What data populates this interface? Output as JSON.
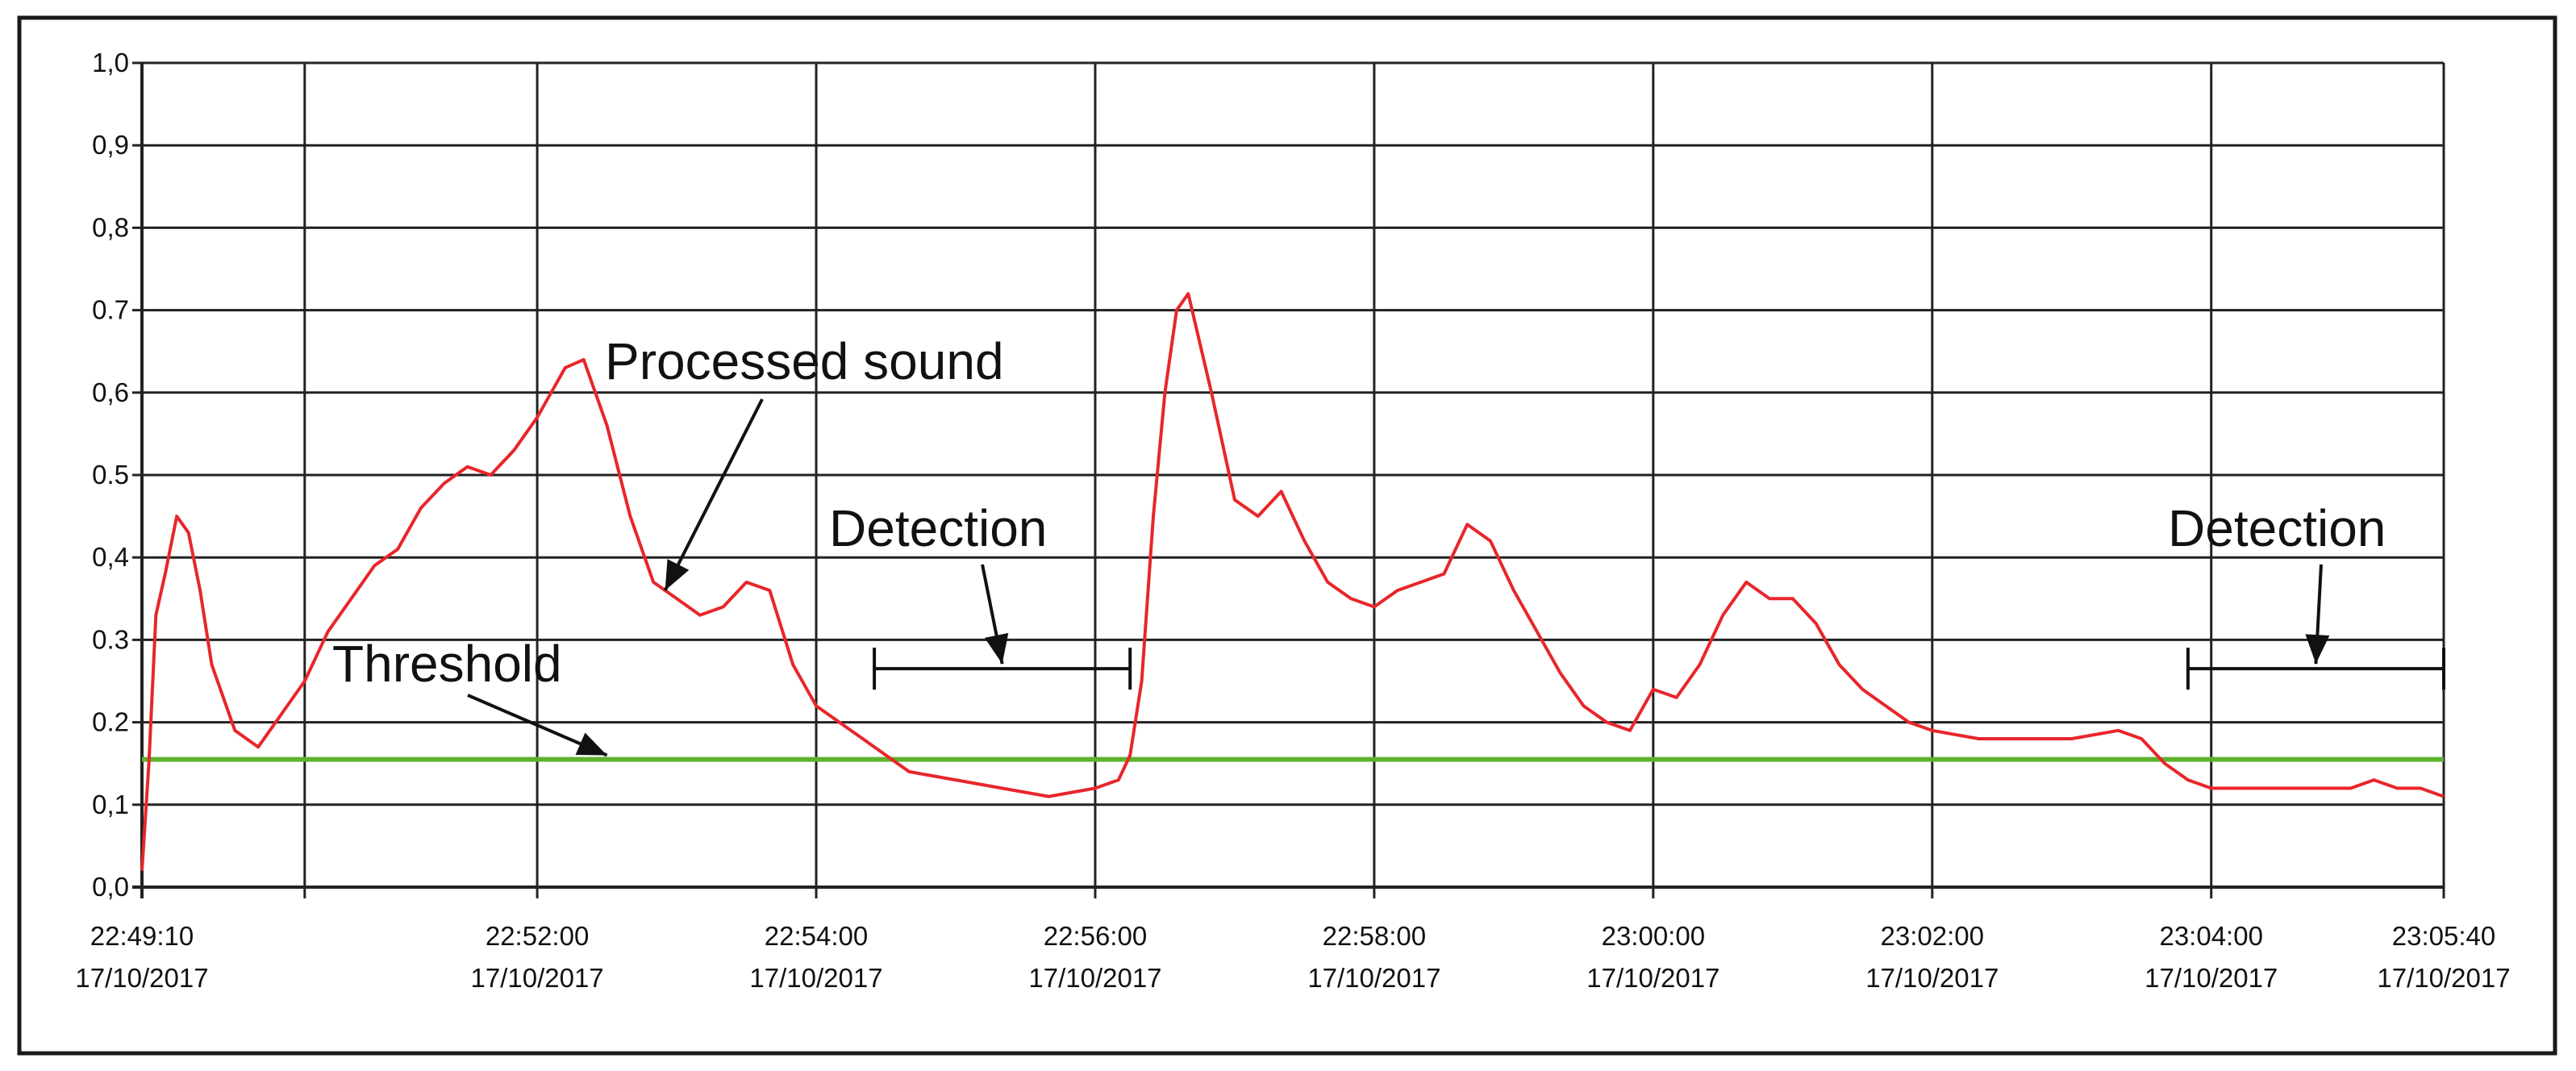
{
  "chart_data": {
    "type": "line",
    "title": "",
    "xlabel": "",
    "ylabel": "",
    "x_axis_type": "time",
    "date": "17/10/2017",
    "x_start": "22:49:10",
    "x_end": "23:05:40",
    "ylim": [
      0.0,
      1.0
    ],
    "grid": true,
    "y_ticks": [
      {
        "value": 0.0,
        "label": "0,0"
      },
      {
        "value": 0.1,
        "label": "0,1"
      },
      {
        "value": 0.2,
        "label": "0.2"
      },
      {
        "value": 0.3,
        "label": "0.3"
      },
      {
        "value": 0.4,
        "label": "0,4"
      },
      {
        "value": 0.5,
        "label": "0.5"
      },
      {
        "value": 0.6,
        "label": "0,6"
      },
      {
        "value": 0.7,
        "label": "0.7"
      },
      {
        "value": 0.8,
        "label": "0,8"
      },
      {
        "value": 0.9,
        "label": "0,9"
      },
      {
        "value": 1.0,
        "label": "1,0"
      }
    ],
    "x_gridlines": [
      "22:49:10",
      "22:50:20",
      "22:52:00",
      "22:54:00",
      "22:56:00",
      "22:58:00",
      "23:00:00",
      "23:02:00",
      "23:04:00",
      "23:05:40"
    ],
    "x_ticks": [
      {
        "time": "22:49:10",
        "label": "22:49:10",
        "date": "17/10/2017"
      },
      {
        "time": "22:52:00",
        "label": "22:52:00",
        "date": "17/10/2017"
      },
      {
        "time": "22:54:00",
        "label": "22:54:00",
        "date": "17/10/2017"
      },
      {
        "time": "22:56:00",
        "label": "22:56:00",
        "date": "17/10/2017"
      },
      {
        "time": "22:58:00",
        "label": "22:58:00",
        "date": "17/10/2017"
      },
      {
        "time": "23:00:00",
        "label": "23:00:00",
        "date": "17/10/2017"
      },
      {
        "time": "23:02:00",
        "label": "23:02:00",
        "date": "17/10/2017"
      },
      {
        "time": "23:04:00",
        "label": "23:04:00",
        "date": "17/10/2017"
      },
      {
        "time": "23:05:40",
        "label": "23:05:40",
        "date": "17/10/2017"
      }
    ],
    "series": [
      {
        "color": "#e8262b",
        "x": [
          "22:49:10",
          "22:49:13",
          "22:49:16",
          "22:49:20",
          "22:49:25",
          "22:49:30",
          "22:49:35",
          "22:49:40",
          "22:49:50",
          "22:50:00",
          "22:50:10",
          "22:50:20",
          "22:50:30",
          "22:50:40",
          "22:50:50",
          "22:51:00",
          "22:51:10",
          "22:51:20",
          "22:51:30",
          "22:51:40",
          "22:51:50",
          "22:52:00",
          "22:52:06",
          "22:52:12",
          "22:52:20",
          "22:52:30",
          "22:52:40",
          "22:52:50",
          "22:53:00",
          "22:53:10",
          "22:53:20",
          "22:53:30",
          "22:53:40",
          "22:53:50",
          "22:54:00",
          "22:54:10",
          "22:54:20",
          "22:54:30",
          "22:54:40",
          "22:55:00",
          "22:55:20",
          "22:55:40",
          "22:56:00",
          "22:56:10",
          "22:56:15",
          "22:56:20",
          "22:56:25",
          "22:56:30",
          "22:56:35",
          "22:56:40",
          "22:56:50",
          "22:57:00",
          "22:57:10",
          "22:57:20",
          "22:57:30",
          "22:57:40",
          "22:57:50",
          "22:58:00",
          "22:58:10",
          "22:58:20",
          "22:58:30",
          "22:58:40",
          "22:58:50",
          "22:59:00",
          "22:59:10",
          "22:59:20",
          "22:59:30",
          "22:59:40",
          "22:59:50",
          "23:00:00",
          "23:00:10",
          "23:00:20",
          "23:00:30",
          "23:00:40",
          "23:00:50",
          "23:01:00",
          "23:01:10",
          "23:01:20",
          "23:01:30",
          "23:01:40",
          "23:01:50",
          "23:02:00",
          "23:02:20",
          "23:02:40",
          "23:03:00",
          "23:03:20",
          "23:03:30",
          "23:03:40",
          "23:03:50",
          "23:04:00",
          "23:04:20",
          "23:04:40",
          "23:05:00",
          "23:05:10",
          "23:05:20",
          "23:05:30",
          "23:05:40"
        ],
        "values": [
          0.02,
          0.15,
          0.33,
          0.38,
          0.45,
          0.43,
          0.36,
          0.27,
          0.19,
          0.17,
          0.21,
          0.25,
          0.31,
          0.35,
          0.39,
          0.41,
          0.46,
          0.49,
          0.51,
          0.5,
          0.53,
          0.57,
          0.6,
          0.63,
          0.64,
          0.56,
          0.45,
          0.37,
          0.35,
          0.33,
          0.34,
          0.37,
          0.36,
          0.27,
          0.22,
          0.2,
          0.18,
          0.16,
          0.14,
          0.13,
          0.12,
          0.11,
          0.12,
          0.13,
          0.16,
          0.25,
          0.45,
          0.6,
          0.7,
          0.72,
          0.6,
          0.47,
          0.45,
          0.48,
          0.42,
          0.37,
          0.35,
          0.34,
          0.36,
          0.37,
          0.38,
          0.44,
          0.42,
          0.36,
          0.31,
          0.26,
          0.22,
          0.2,
          0.19,
          0.24,
          0.23,
          0.27,
          0.33,
          0.37,
          0.35,
          0.35,
          0.32,
          0.27,
          0.24,
          0.22,
          0.2,
          0.19,
          0.18,
          0.18,
          0.18,
          0.19,
          0.18,
          0.15,
          0.13,
          0.12,
          0.12,
          0.12,
          0.12,
          0.13,
          0.12,
          0.12,
          0.11
        ]
      },
      {
        "color": "#5db32e",
        "x": [
          "22:49:10",
          "23:05:40"
        ],
        "values": [
          0.155,
          0.155
        ]
      }
    ],
    "annotations": [
      {
        "text": "Processed sound",
        "arrow_to": {
          "x": "22:52:55",
          "y": 0.36
        }
      },
      {
        "text": "Threshold",
        "arrow_to": {
          "x": "22:52:30",
          "y": 0.16
        }
      },
      {
        "text": "Detection",
        "interval": [
          "22:54:25",
          "22:56:15"
        ],
        "y": 0.265
      },
      {
        "text": "Detection",
        "interval": [
          "23:03:50",
          "23:05:40"
        ],
        "y": 0.265
      }
    ]
  }
}
